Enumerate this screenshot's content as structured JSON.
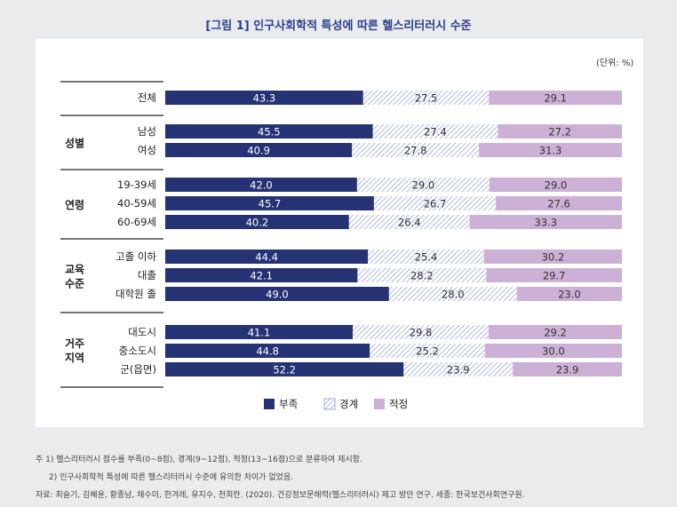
{
  "title": "[그림 1] 인구사회학적 특성에 따른 헬스리터러시 수준",
  "unit": "(단위: %)",
  "legend": [
    "부족",
    "경계",
    "적정"
  ],
  "colors": {
    "부족": "#253374",
    "경계": "#9aa8d8",
    "적정": "#cdb0d6",
    "title": "#2c3f8c"
  },
  "groups": [
    {
      "label": [
        "",
        ""
      ],
      "rows": [
        "전체"
      ]
    },
    {
      "label": [
        "성별",
        ""
      ],
      "rows": [
        "남성",
        "여성"
      ]
    },
    {
      "label": [
        "연령",
        ""
      ],
      "rows": [
        "19-39세",
        "40-59세",
        "60-69세"
      ]
    },
    {
      "label": [
        "교육",
        "수준"
      ],
      "rows": [
        "고졸 이하",
        "대졸",
        "대학원 졸"
      ]
    },
    {
      "label": [
        "거주",
        "지역"
      ],
      "rows": [
        "대도시",
        "중소도시",
        "군(읍면)"
      ]
    }
  ],
  "chart_data": {
    "type": "bar",
    "orientation": "horizontal-stacked-100",
    "categories": [
      "전체",
      "남성",
      "여성",
      "19-39세",
      "40-59세",
      "60-69세",
      "고졸 이하",
      "대졸",
      "대학원 졸",
      "대도시",
      "중소도시",
      "군(읍면)"
    ],
    "series": [
      {
        "name": "부족",
        "values": [
          43.3,
          45.5,
          40.9,
          42.0,
          45.7,
          40.2,
          44.4,
          42.1,
          49.0,
          41.1,
          44.8,
          52.2
        ]
      },
      {
        "name": "경계",
        "values": [
          27.5,
          27.4,
          27.8,
          29.0,
          26.7,
          26.4,
          25.4,
          28.2,
          28.0,
          29.8,
          25.2,
          23.9
        ]
      },
      {
        "name": "적정",
        "values": [
          29.1,
          27.2,
          31.3,
          29.0,
          27.6,
          33.3,
          30.2,
          29.7,
          23.0,
          29.2,
          30.0,
          23.9
        ]
      }
    ],
    "value_labels": [
      [
        "43.3",
        "45.5",
        "40.9",
        "42.0",
        "45.7",
        "40.2",
        "44.4",
        "42.1",
        "49.0",
        "41.1",
        "44.8",
        "52.2"
      ],
      [
        "27.5",
        "27.4",
        "27.8",
        "29.0",
        "26.7",
        "26.4",
        "25.4",
        "28.2",
        "28.0",
        "29.8",
        "25.2",
        "23.9"
      ],
      [
        "29.1",
        "27.2",
        "31.3",
        "29.0",
        "27.6",
        "33.3",
        "30.2",
        "29.7",
        "23.0",
        "29.2",
        "30.0",
        "23.9"
      ]
    ],
    "xlim": [
      0,
      100
    ],
    "legend_position": "bottom-center",
    "grid": false
  },
  "notes": [
    "주 1) 헬스리터러시 점수를 부족(0~8점), 경계(9~12점), 적정(13~16점)으로 분류하여 제시함.",
    "2) 인구사회학적 특성에 따른 헬스리터러시 수준에 유의한 차이가 없었음.",
    "자료: 최슬기, 김혜윤, 황종남, 채수미, 한겨레, 유지수, 천희란. (2020). 건강정보문해력(헬스리터러시) 제고 방안 연구. 세종: 한국보건사회연구원."
  ]
}
